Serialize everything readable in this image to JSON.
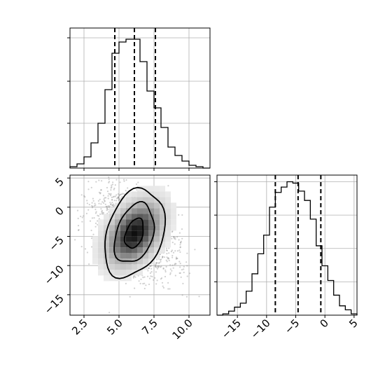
{
  "chart_data": [
    {
      "type": "bar",
      "panel": "marginal-x",
      "bin_edges": [
        1.5,
        2.0,
        2.5,
        3.0,
        3.5,
        4.0,
        4.5,
        5.0,
        5.5,
        6.0,
        6.5,
        7.0,
        7.5,
        8.0,
        8.5,
        9.0,
        9.5,
        10.0,
        10.5,
        11.0,
        11.5
      ],
      "values": [
        0.01,
        0.03,
        0.08,
        0.18,
        0.32,
        0.56,
        0.82,
        0.9,
        0.92,
        0.92,
        0.76,
        0.55,
        0.43,
        0.29,
        0.15,
        0.09,
        0.05,
        0.02,
        0.01,
        0.0
      ],
      "quantile_lines": [
        4.7,
        6.1,
        7.6
      ],
      "xlim": [
        1.5,
        11.5
      ],
      "ylim": [
        0,
        1
      ],
      "ytick_positions": [
        0.32,
        0.62,
        0.93
      ],
      "grid": true
    },
    {
      "type": "heatmap",
      "panel": "joint",
      "x_ticks": [
        "2.5",
        "5.0",
        "7.5",
        "10.0"
      ],
      "x_tick_values": [
        2.5,
        5.0,
        7.5,
        10.0
      ],
      "y_ticks": [
        "5",
        "0",
        "−5",
        "−10",
        "−15"
      ],
      "y_tick_values": [
        5,
        0,
        -5,
        -10,
        -15
      ],
      "xlim": [
        1.5,
        11.5
      ],
      "ylim": [
        -18.5,
        5.5
      ],
      "center": [
        6.1,
        -4.5
      ],
      "grid": true
    },
    {
      "type": "bar",
      "panel": "marginal-y",
      "bin_edges": [
        -18.5,
        -17.5,
        -16.5,
        -15.5,
        -14.5,
        -13.5,
        -12.5,
        -11.5,
        -10.5,
        -9.5,
        -8.5,
        -7.5,
        -6.5,
        -5.5,
        -4.5,
        -3.5,
        -2.5,
        -1.5,
        -0.5,
        0.5,
        1.5,
        2.5,
        3.5,
        4.5,
        5.5
      ],
      "values": [
        0.0,
        0.01,
        0.03,
        0.06,
        0.09,
        0.18,
        0.31,
        0.46,
        0.6,
        0.81,
        0.92,
        0.96,
        1.0,
        0.99,
        0.93,
        0.86,
        0.72,
        0.52,
        0.37,
        0.26,
        0.15,
        0.07,
        0.04,
        0.01
      ],
      "quantile_lines": [
        -8.5,
        -4.6,
        -0.7
      ],
      "x_ticks": [
        "−15",
        "−10",
        "−5",
        "0",
        "5"
      ],
      "x_tick_values": [
        -15,
        -10,
        -5,
        0,
        5
      ],
      "xlim": [
        -18.5,
        5.5
      ],
      "ylim": [
        0,
        1.05
      ],
      "ytick_positions": [
        0.25,
        0.5,
        0.75,
        1.0
      ],
      "grid": true
    }
  ]
}
